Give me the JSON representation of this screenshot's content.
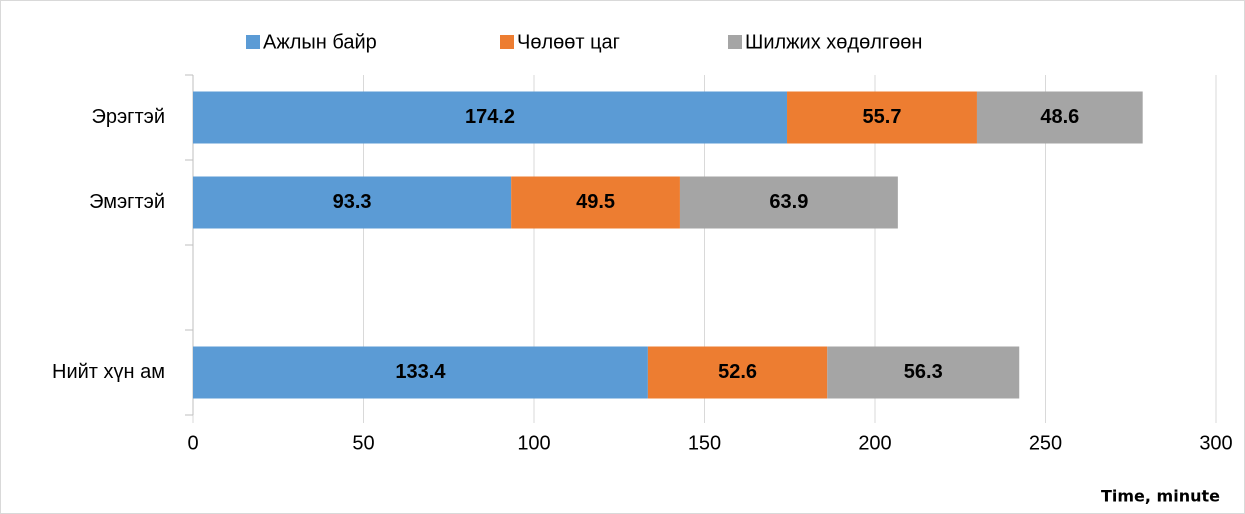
{
  "chart_data": {
    "type": "stacked-bar-horizontal",
    "categories": [
      "Эрэгтэй",
      "Эмэгтэй",
      null,
      "Нийт хүн ам"
    ],
    "series": [
      {
        "name": "Ажлын байр",
        "color": "#5b9bd5",
        "values": [
          174.2,
          93.3,
          null,
          133.4
        ]
      },
      {
        "name": "Чөлөөт цаг",
        "color": "#ed7d31",
        "values": [
          55.7,
          49.5,
          null,
          52.6
        ]
      },
      {
        "name": "Шилжих хөдөлгөөн",
        "color": "#a5a5a5",
        "values": [
          48.6,
          63.9,
          null,
          56.3
        ]
      }
    ],
    "xlabel": "Time, minute",
    "xlim": [
      0,
      300
    ],
    "xticks": [
      0,
      50,
      100,
      150,
      200,
      250,
      300
    ],
    "grid": true,
    "legend": "top"
  }
}
